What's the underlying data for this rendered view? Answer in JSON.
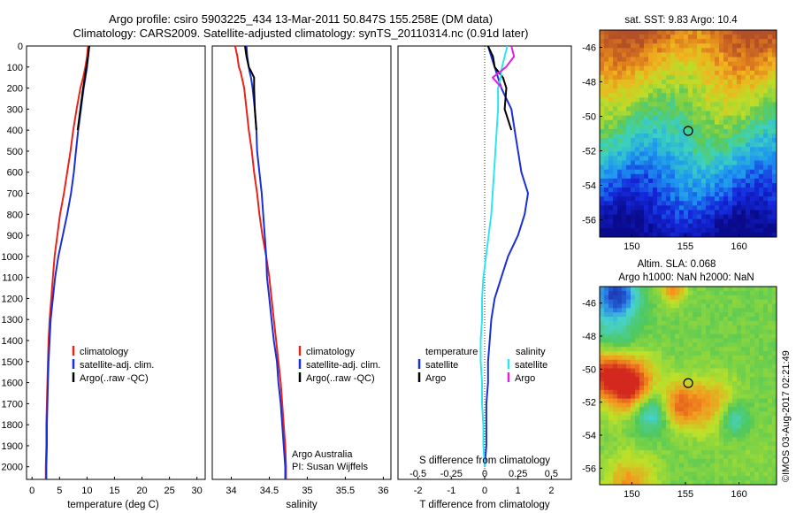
{
  "title": {
    "line1": "Argo profile: csiro 5903225_434 13-Mar-2011 50.847S 155.258E (DM data)",
    "line2": "Climatology: CARS2009. Satellite-adjusted climatology: synTS_20110314.nc (0.91d later)"
  },
  "colors": {
    "climatology": "#e8231c",
    "satellite": "#1a2fd6",
    "argo": "#000000",
    "sal_satellite": "#2ee6f0",
    "sal_argo": "#e020e0"
  },
  "chart_data": [
    {
      "type": "line",
      "name": "temperature",
      "xlabel": "temperature (deg C)",
      "ylabel": "",
      "xlim": [
        -1,
        31.5
      ],
      "ylim": [
        2060,
        0
      ],
      "xticks": [
        "0",
        "5",
        "10",
        "15",
        "20",
        "25",
        "30"
      ],
      "yticks": [
        "0",
        "100",
        "200",
        "300",
        "400",
        "500",
        "600",
        "700",
        "800",
        "900",
        "1000",
        "1100",
        "1200",
        "1300",
        "1400",
        "1500",
        "1600",
        "1700",
        "1800",
        "1900",
        "2000"
      ],
      "depth": [
        0,
        50,
        100,
        150,
        200,
        300,
        400,
        500,
        600,
        700,
        800,
        900,
        1000,
        1100,
        1200,
        1300,
        1400,
        1500,
        1600,
        1700,
        1800,
        1900,
        2000,
        2060
      ],
      "series": [
        {
          "name": "climatology",
          "values": [
            10.2,
            10.0,
            9.7,
            9.3,
            8.8,
            8.1,
            7.5,
            7.0,
            6.4,
            5.8,
            5.1,
            4.6,
            4.1,
            3.8,
            3.5,
            3.2,
            3.0,
            2.9,
            2.8,
            2.7,
            2.6,
            2.6,
            2.5,
            2.5
          ]
        },
        {
          "name": "satellite-adj. clim.",
          "values": [
            10.4,
            10.2,
            10.0,
            9.7,
            9.4,
            8.9,
            8.4,
            8.0,
            7.6,
            7.1,
            6.4,
            5.6,
            4.8,
            4.2,
            3.8,
            3.4,
            3.2,
            3.0,
            2.9,
            2.8,
            2.7,
            2.7,
            2.6,
            2.6
          ]
        },
        {
          "name": "Argo(..raw -QC)",
          "values": [
            10.4,
            10.2,
            9.9,
            9.6,
            9.3,
            8.8,
            8.3,
            null,
            null,
            null,
            null,
            null,
            null,
            null,
            null,
            null,
            null,
            null,
            null,
            null,
            null,
            null,
            null,
            null
          ]
        }
      ],
      "legend": [
        "climatology",
        "satellite-adj. clim.",
        "Argo(..raw -QC)"
      ]
    },
    {
      "type": "line",
      "name": "salinity",
      "xlabel": "salinity",
      "xlim": [
        33.75,
        36.1
      ],
      "ylim": [
        2060,
        0
      ],
      "xticks": [
        "34",
        "34.5",
        "35",
        "35.5",
        "36"
      ],
      "depth": [
        0,
        50,
        100,
        120,
        150,
        200,
        300,
        400,
        500,
        600,
        700,
        800,
        900,
        1000,
        1100,
        1200,
        1300,
        1400,
        1500,
        1600,
        1700,
        1800,
        1900,
        2000,
        2060
      ],
      "series": [
        {
          "name": "climatology",
          "values": [
            34.05,
            34.08,
            34.1,
            34.12,
            34.14,
            34.17,
            34.2,
            34.23,
            34.27,
            34.3,
            34.34,
            34.37,
            34.41,
            34.46,
            34.5,
            34.53,
            34.56,
            34.59,
            34.62,
            34.65,
            34.67,
            34.69,
            34.71,
            34.72,
            34.72
          ]
        },
        {
          "name": "satellite-adj. clim.",
          "values": [
            34.2,
            34.21,
            34.23,
            34.24,
            34.26,
            34.28,
            34.31,
            34.33,
            34.34,
            34.37,
            34.4,
            34.42,
            34.44,
            34.46,
            34.47,
            34.5,
            34.53,
            34.56,
            34.6,
            34.62,
            34.65,
            34.67,
            34.69,
            34.71,
            34.71
          ]
        },
        {
          "name": "Argo(..raw -QC)",
          "values": [
            34.18,
            34.2,
            34.23,
            34.26,
            34.3,
            34.3,
            34.31,
            34.33,
            null,
            null,
            null,
            null,
            null,
            null,
            null,
            null,
            null,
            null,
            null,
            null,
            null,
            null,
            null,
            null,
            null
          ]
        }
      ],
      "legend": [
        "climatology",
        "satellite-adj. clim.",
        "Argo(..raw -QC)"
      ],
      "annotation": [
        "Argo Australia",
        "PI: Susan Wijffels"
      ]
    },
    {
      "type": "line",
      "name": "differences",
      "xlabel": "T difference from climatology",
      "x2label": "S difference from climatology",
      "xlim": [
        -2.6,
        2.6
      ],
      "ylim": [
        2060,
        0
      ],
      "xticks": [
        "-2",
        "-1",
        "0",
        "1",
        "2"
      ],
      "x2ticks": [
        "-0.5",
        "-0.25",
        "0",
        "0.25",
        "0.5"
      ],
      "depth": [
        0,
        50,
        100,
        150,
        200,
        300,
        400,
        500,
        600,
        700,
        800,
        900,
        1000,
        1100,
        1200,
        1300,
        1400,
        1500,
        1600,
        1700,
        1800,
        1900,
        2000
      ],
      "series": [
        {
          "name": "temperature satellite",
          "values": [
            0.1,
            0.2,
            0.3,
            0.4,
            0.5,
            0.8,
            0.9,
            1.0,
            1.1,
            1.3,
            1.2,
            1.0,
            0.7,
            0.5,
            0.3,
            0.2,
            0.15,
            0.1,
            0.1,
            0.05,
            0.05,
            0.05,
            0.0
          ]
        },
        {
          "name": "temperature Argo",
          "values": [
            0.1,
            0.25,
            0.3,
            0.55,
            0.65,
            0.6,
            0.8,
            null,
            null,
            null,
            null,
            null,
            null,
            null,
            null,
            null,
            null,
            null,
            null,
            null,
            null,
            null,
            null
          ]
        },
        {
          "name": "salinity satellite",
          "values": [
            0.17,
            0.15,
            0.13,
            0.12,
            0.1,
            0.1,
            0.09,
            0.08,
            0.07,
            0.06,
            0.05,
            0.03,
            0.01,
            -0.01,
            -0.02,
            -0.02,
            -0.03,
            -0.03,
            -0.02,
            -0.02,
            -0.01,
            -0.01,
            0.0
          ]
        },
        {
          "name": "salinity Argo",
          "values": [
            0.2,
            0.22,
            0.16,
            0.06,
            0.13,
            null,
            null,
            null,
            null,
            null,
            null,
            null,
            null,
            null,
            null,
            null,
            null,
            null,
            null,
            null,
            null,
            null,
            null
          ]
        }
      ],
      "legend": {
        "temperature": "temperature",
        "salinity": "salinity",
        "satellite": "satellite",
        "argo": "Argo"
      }
    },
    {
      "type": "heatmap",
      "name": "sst-map",
      "title": "sat. SST: 9.83  Argo: 10.4",
      "xticks": [
        "150",
        "155",
        "160"
      ],
      "yticks": [
        "-46",
        "-48",
        "-50",
        "-52",
        "-54",
        "-56"
      ],
      "xlim": [
        147,
        163.5
      ],
      "ylim": [
        -57,
        -45
      ],
      "marker": {
        "lon": 155.258,
        "lat": -50.847
      }
    },
    {
      "type": "heatmap",
      "name": "sla-map",
      "title": "Altim. SLA: 0.068",
      "subtitle": "Argo h1000: NaN  h2000: NaN",
      "xticks": [
        "150",
        "155",
        "160"
      ],
      "yticks": [
        "-46",
        "-48",
        "-50",
        "-52",
        "-54",
        "-56"
      ],
      "xlim": [
        147,
        163.5
      ],
      "ylim": [
        -57,
        -45
      ],
      "marker": {
        "lon": 155.258,
        "lat": -50.847
      }
    }
  ],
  "footer": {
    "credit": "©IMOS 03-Aug-2017 02:21:49"
  }
}
